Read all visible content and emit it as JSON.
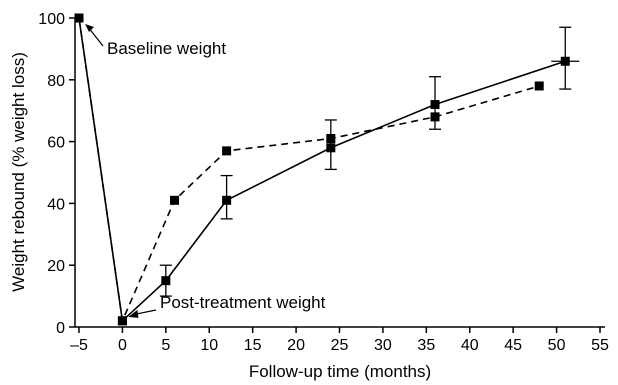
{
  "chart_data": {
    "type": "line",
    "xlabel": "Follow-up time (months)",
    "ylabel": "Weight rebound (% weight loss)",
    "xlim": [
      -5,
      55
    ],
    "ylim": [
      0,
      100
    ],
    "xticks": [
      -5,
      0,
      5,
      10,
      15,
      20,
      25,
      30,
      35,
      40,
      45,
      50,
      55
    ],
    "yticks": [
      0,
      20,
      40,
      60,
      80,
      100
    ],
    "grid": false,
    "legend": "none",
    "series": [
      {
        "line_style": "solid",
        "marker": "square",
        "color": "#000000",
        "points": [
          {
            "x": -5,
            "y": 100
          },
          {
            "x": 0,
            "y": 2
          },
          {
            "x": 5,
            "y": 15,
            "err_low": 10,
            "err_high": 20
          },
          {
            "x": 12,
            "y": 41,
            "err_low": 35,
            "err_high": 49
          },
          {
            "x": 24,
            "y": 58,
            "err_low": 51,
            "err_high": 67
          },
          {
            "x": 36,
            "y": 72,
            "err_low": 64,
            "err_high": 81
          },
          {
            "x": 51,
            "y": 86,
            "err_low": 77,
            "err_high": 97
          }
        ]
      },
      {
        "line_style": "dashed",
        "marker": "square",
        "color": "#000000",
        "points": [
          {
            "x": -5,
            "y": 100
          },
          {
            "x": 0,
            "y": 2
          },
          {
            "x": 6,
            "y": 41
          },
          {
            "x": 12,
            "y": 57
          },
          {
            "x": 24,
            "y": 61
          },
          {
            "x": 36,
            "y": 68
          },
          {
            "x": 48,
            "y": 78
          }
        ]
      }
    ],
    "annotations": [
      {
        "text": "Baseline weight",
        "x": -5,
        "y": 100
      },
      {
        "text": "Post-treatment weight",
        "x": 0,
        "y": 2
      }
    ]
  }
}
